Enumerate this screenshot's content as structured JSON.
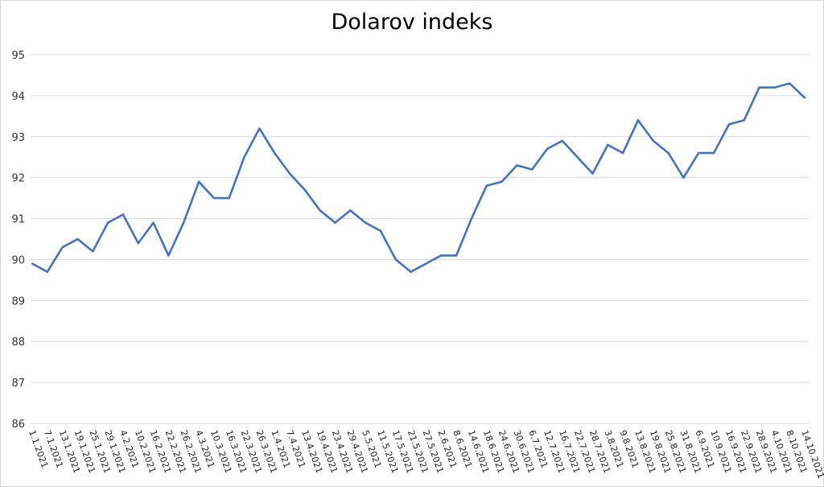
{
  "chart_data": {
    "type": "line",
    "title": "Dolarov indeks",
    "xlabel": "",
    "ylabel": "",
    "ylim": [
      86,
      95
    ],
    "yticks": [
      86,
      87,
      88,
      89,
      90,
      91,
      92,
      93,
      94,
      95
    ],
    "grid": true,
    "legend": "none",
    "line_color": "#4472c4",
    "x": [
      "1.1.2021",
      "7.1.2021",
      "13.1.2021",
      "19.1.2021",
      "25.1.2021",
      "29.1.2021",
      "4.2.2021",
      "10.2.2021",
      "16.2.2021",
      "22.2.2021",
      "26.2.2021",
      "4.3.2021",
      "10.3.2021",
      "16.3.2021",
      "22.3.2021",
      "26.3.2021",
      "1.4.2021",
      "7.4.2021",
      "13.4.2021",
      "19.4.2021",
      "23.4.2021",
      "29.4.2021",
      "5.5.2021",
      "11.5.2021",
      "17.5.2021",
      "21.5.2021",
      "27.5.2021",
      "2.6.2021",
      "8.6.2021",
      "14.6.2021",
      "18.6.2021",
      "24.6.2021",
      "30.6.2021",
      "6.7.2021",
      "12.7.2021",
      "16.7.2021",
      "22.7.2021",
      "28.7.2021",
      "3.8.2021",
      "9.8.2021",
      "13.8.2021",
      "19.8.2021",
      "25.8.2021",
      "31.8.2021",
      "6.9.2021",
      "10.9.2021",
      "16.9.2021",
      "22.9.2021",
      "28.9.2021",
      "4.10.2021",
      "8.10.2021",
      "14.10.2021"
    ],
    "series": [
      {
        "values": [
          89.9,
          89.7,
          90.3,
          90.5,
          90.2,
          90.9,
          91.1,
          90.4,
          90.9,
          90.1,
          90.9,
          91.9,
          91.5,
          91.5,
          92.5,
          93.2,
          92.6,
          92.1,
          91.7,
          91.2,
          90.9,
          91.2,
          90.9,
          90.7,
          90.0,
          89.7,
          89.9,
          90.1,
          90.1,
          91.0,
          91.8,
          91.9,
          92.3,
          92.2,
          92.7,
          92.9,
          92.5,
          92.1,
          92.8,
          92.6,
          93.4,
          92.9,
          92.6,
          92.0,
          92.6,
          92.6,
          93.3,
          93.4,
          94.2,
          94.2,
          94.3,
          93.95
        ]
      }
    ]
  }
}
